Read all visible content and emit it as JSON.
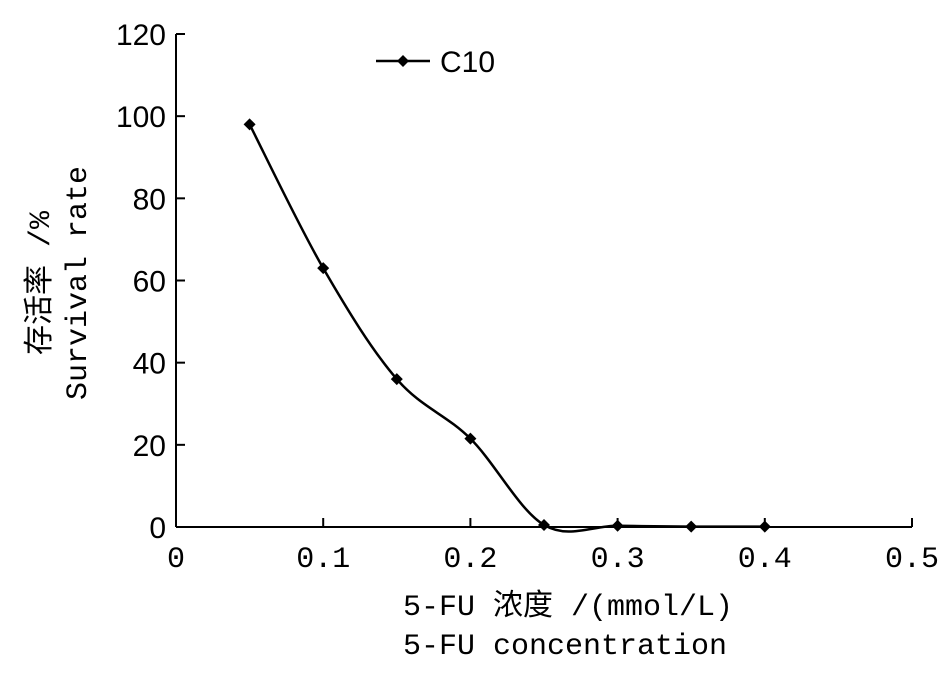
{
  "chart_data": {
    "type": "line",
    "x": [
      0.05,
      0.1,
      0.15,
      0.2,
      0.25,
      0.3,
      0.35,
      0.4
    ],
    "series": [
      {
        "name": "C10",
        "values": [
          98,
          63,
          36,
          21.5,
          0.5,
          0.3,
          0.1,
          0.1
        ],
        "marker": "diamond",
        "color": "#000000"
      }
    ],
    "xlabel_lines": [
      "5-FU 浓度 /(mmol/L)",
      "5-FU concentration"
    ],
    "ylabel_lines": [
      "存活率 /%",
      "Survival rate"
    ],
    "xlim": [
      0,
      0.5
    ],
    "ylim": [
      0,
      120
    ],
    "xticks": [
      0,
      0.1,
      0.2,
      0.3,
      0.4,
      0.5
    ],
    "xtick_labels": [
      "0",
      "0.1",
      "0.2",
      "0.3",
      "0.4",
      "0.5"
    ],
    "yticks": [
      0,
      20,
      40,
      60,
      80,
      100,
      120
    ],
    "ytick_labels": [
      "0",
      "20",
      "40",
      "60",
      "80",
      "100",
      "120"
    ],
    "grid": false,
    "legend_position": "top-left",
    "smooth": true
  }
}
